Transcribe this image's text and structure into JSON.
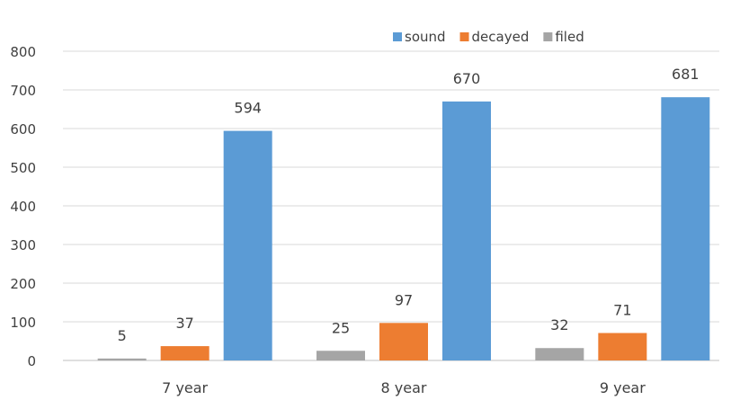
{
  "chart_data": {
    "type": "bar",
    "categories": [
      "7  year",
      "8 year",
      "9 year"
    ],
    "series": [
      {
        "name": "filed",
        "color": "#a5a5a5",
        "values": [
          5,
          25,
          32
        ]
      },
      {
        "name": "decayed",
        "color": "#ed7d31",
        "values": [
          37,
          97,
          71
        ]
      },
      {
        "name": "sound",
        "color": "#5b9bd5",
        "values": [
          594,
          670,
          681
        ]
      }
    ],
    "legend_order": [
      "sound",
      "decayed",
      "filed"
    ],
    "y_ticks": [
      "0",
      "100",
      "200",
      "300",
      "400",
      "500",
      "600",
      "700",
      "800"
    ],
    "ylim": [
      0,
      800
    ],
    "grid": true,
    "legend_position": "top-right"
  }
}
